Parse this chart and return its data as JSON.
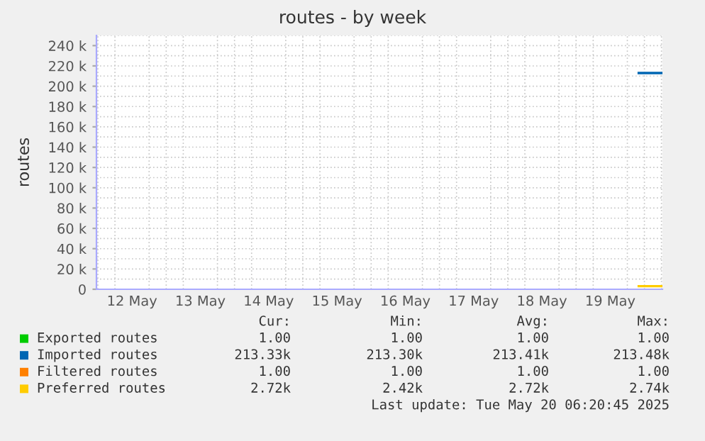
{
  "chart_data": {
    "type": "line",
    "title": "routes - by week",
    "ylabel": "routes",
    "x": [
      "2025-05-19T22:00",
      "2025-05-20T06:20"
    ],
    "series": [
      {
        "name": "Exported routes",
        "color": "#00cc00",
        "values": [
          null,
          null
        ]
      },
      {
        "name": "Imported routes",
        "color": "#0066b3",
        "values": [
          213000,
          213000
        ]
      },
      {
        "name": "Filtered routes",
        "color": "#ff8000",
        "values": [
          null,
          null
        ]
      },
      {
        "name": "Preferred routes",
        "color": "#ffcc00",
        "values": [
          3000,
          3000
        ]
      }
    ],
    "xlim": [
      "2025-05-11T23:30",
      "2025-05-20T06:20"
    ],
    "xticks": [
      {
        "value": "2025-05-12T12:00",
        "label": "12 May"
      },
      {
        "value": "2025-05-13T12:00",
        "label": "13 May"
      },
      {
        "value": "2025-05-14T12:00",
        "label": "14 May"
      },
      {
        "value": "2025-05-15T12:00",
        "label": "15 May"
      },
      {
        "value": "2025-05-16T12:00",
        "label": "16 May"
      },
      {
        "value": "2025-05-17T12:00",
        "label": "17 May"
      },
      {
        "value": "2025-05-18T12:00",
        "label": "18 May"
      },
      {
        "value": "2025-05-19T12:00",
        "label": "19 May"
      }
    ],
    "ylim": [
      0,
      250000
    ],
    "yticks": [
      {
        "value": 0,
        "label": "0"
      },
      {
        "value": 20000,
        "label": "20 k"
      },
      {
        "value": 40000,
        "label": "40 k"
      },
      {
        "value": 60000,
        "label": "60 k"
      },
      {
        "value": 80000,
        "label": "80 k"
      },
      {
        "value": 100000,
        "label": "100 k"
      },
      {
        "value": 120000,
        "label": "120 k"
      },
      {
        "value": 140000,
        "label": "140 k"
      },
      {
        "value": 160000,
        "label": "160 k"
      },
      {
        "value": 180000,
        "label": "180 k"
      },
      {
        "value": 200000,
        "label": "200 k"
      },
      {
        "value": 220000,
        "label": "220 k"
      },
      {
        "value": 240000,
        "label": "240 k"
      }
    ],
    "grid": true,
    "legend": "bottom",
    "marker": "none",
    "line_style": "solid",
    "annotations": [
      "Cur:",
      "Min:",
      "Avg:",
      "Max:",
      "1.00",
      "1.00",
      "1.00",
      "1.00",
      "213.33k",
      "213.30k",
      "213.41k",
      "213.48k",
      "1.00",
      "1.00",
      "1.00",
      "1.00",
      "2.72k",
      "2.42k",
      "2.72k",
      "2.74k",
      "Last update: Tue May 20 06:20:45 2025"
    ]
  }
}
